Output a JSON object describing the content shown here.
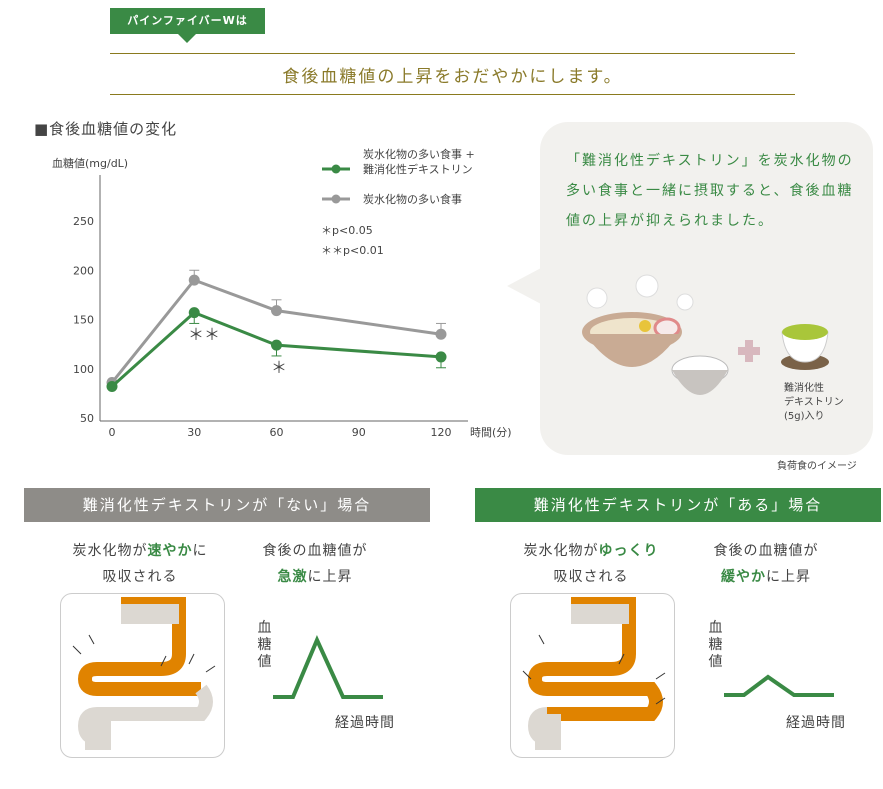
{
  "header": {
    "tag": "パインファイバーWは",
    "headline": "食後血糖値の上昇をおだやかにします。"
  },
  "section_title": "■食後血糖値の変化",
  "chart_data": {
    "type": "line",
    "title": "食後血糖値の変化",
    "ylabel": "血糖値(mg/dL)",
    "xlabel": "時間(分)",
    "x": [
      0,
      30,
      60,
      120
    ],
    "xticks": [
      "0",
      "30",
      "60",
      "90",
      "120"
    ],
    "xtick_values": [
      0,
      30,
      60,
      90,
      120
    ],
    "yticks": [
      "50",
      "100",
      "150",
      "200",
      "250"
    ],
    "ylim": [
      50,
      250
    ],
    "xlim": [
      0,
      120
    ],
    "series": [
      {
        "name": "炭水化物の多い食事 + 難消化性デキストリン",
        "name_line1": "炭水化物の多い食事 +",
        "name_line2": "難消化性デキストリン",
        "color": "#3a8a45",
        "values": [
          82,
          157,
          124,
          112
        ],
        "error_low": [
          82,
          146,
          113,
          101
        ]
      },
      {
        "name": "炭水化物の多い食事",
        "color": "#999999",
        "values": [
          86,
          190,
          159,
          135
        ],
        "error_high": [
          86,
          200,
          170,
          146
        ]
      }
    ],
    "annotations": {
      "sig30": "＊＊",
      "sig60": "＊",
      "p05": "＊p<0.05",
      "p01": "＊＊p<0.01"
    },
    "legend": "top-right"
  },
  "bubble": {
    "text": "「難消化性デキストリン」を炭水化物の多い食事と一緒に摂取すると、食後血糖値の上昇が抑えられました。",
    "label1": "難消化性",
    "label2": "デキストリン",
    "label3": "(5g)入り",
    "caption": "負荷食のイメージ"
  },
  "panels": [
    {
      "banner": "難消化性デキストリンが「ない」場合",
      "color": "#8e8c88",
      "left_pre": "炭水化物が",
      "left_hl": "速やか",
      "left_post": "に",
      "left_line2": "吸収される",
      "right_line1": "食後の血糖値が",
      "right_hl": "急激",
      "right_post": "に上昇",
      "y_label": "血糖値",
      "x_label": "経過時間"
    },
    {
      "banner": "難消化性デキストリンが「ある」場合",
      "color": "#3a8a45",
      "left_pre": "炭水化物が",
      "left_hl": "ゆっくり",
      "left_post": "",
      "left_line2": "吸収される",
      "right_line1": "食後の血糖値が",
      "right_hl": "緩やか",
      "right_post": "に上昇",
      "y_label": "血糖値",
      "x_label": "経過時間"
    }
  ]
}
